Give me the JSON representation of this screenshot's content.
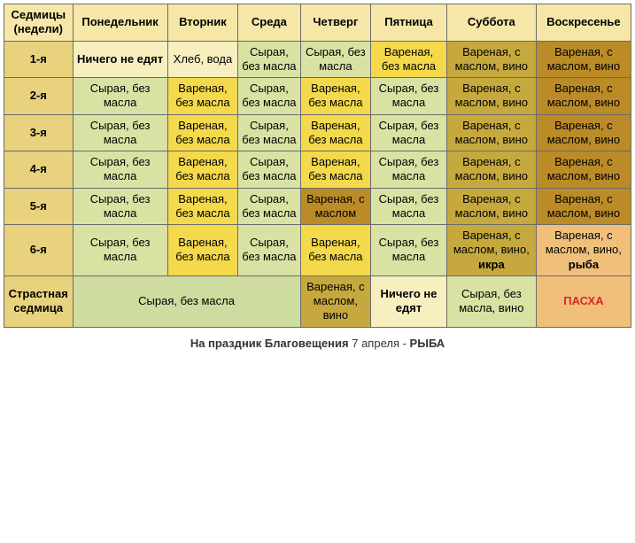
{
  "colors": {
    "header": "#f6e7a8",
    "week_label": "#e8d27e",
    "cream": "#f7efc0",
    "light_green": "#d9e2a3",
    "pale_green": "#cfdca0",
    "yellow": "#f3d94b",
    "olive": "#c6a93e",
    "brown": "#ba8b27",
    "salmon": "#f0c07a",
    "pascha_text": "#d8262c"
  },
  "headers": {
    "week": "Седмицы\n(недели)",
    "mon": "Понедельник",
    "tue": "Вторник",
    "wed": "Среда",
    "thu": "Четверг",
    "fri": "Пятница",
    "sat": "Суббота",
    "sun": "Воскресенье"
  },
  "rows": [
    {
      "label": "1-я",
      "cells": [
        {
          "text": "Ничего не едят",
          "bg": "cream",
          "bold": true
        },
        {
          "text": "Хлеб, вода",
          "bg": "cream"
        },
        {
          "text": "Сырая, без масла",
          "bg": "light_green"
        },
        {
          "text": "Сырая, без масла",
          "bg": "light_green"
        },
        {
          "text": "Вареная, без масла",
          "bg": "yellow"
        },
        {
          "text": "Вареная, с маслом, вино",
          "bg": "olive"
        },
        {
          "text": "Вареная, с маслом, вино",
          "bg": "brown"
        }
      ]
    },
    {
      "label": "2-я",
      "cells": [
        {
          "text": "Сырая, без масла",
          "bg": "light_green"
        },
        {
          "text": "Вареная, без масла",
          "bg": "yellow"
        },
        {
          "text": "Сырая, без масла",
          "bg": "light_green"
        },
        {
          "text": "Вареная, без масла",
          "bg": "yellow"
        },
        {
          "text": "Сырая, без масла",
          "bg": "light_green"
        },
        {
          "text": "Вареная, с маслом, вино",
          "bg": "olive"
        },
        {
          "text": "Вареная, с маслом, вино",
          "bg": "brown"
        }
      ]
    },
    {
      "label": "3-я",
      "cells": [
        {
          "text": "Сырая, без масла",
          "bg": "light_green"
        },
        {
          "text": "Вареная, без масла",
          "bg": "yellow"
        },
        {
          "text": "Сырая, без масла",
          "bg": "light_green"
        },
        {
          "text": "Вареная, без масла",
          "bg": "yellow"
        },
        {
          "text": "Сырая, без масла",
          "bg": "light_green"
        },
        {
          "text": "Вареная, с маслом, вино",
          "bg": "olive"
        },
        {
          "text": "Вареная, с маслом, вино",
          "bg": "brown"
        }
      ]
    },
    {
      "label": "4-я",
      "cells": [
        {
          "text": "Сырая, без масла",
          "bg": "light_green"
        },
        {
          "text": "Вареная, без масла",
          "bg": "yellow"
        },
        {
          "text": "Сырая, без масла",
          "bg": "light_green"
        },
        {
          "text": "Вареная, без масла",
          "bg": "yellow"
        },
        {
          "text": "Сырая, без масла",
          "bg": "light_green"
        },
        {
          "text": "Вареная, с маслом, вино",
          "bg": "olive"
        },
        {
          "text": "Вареная, с маслом, вино",
          "bg": "brown"
        }
      ]
    },
    {
      "label": "5-я",
      "cells": [
        {
          "text": "Сырая, без масла",
          "bg": "light_green"
        },
        {
          "text": "Вареная, без масла",
          "bg": "yellow"
        },
        {
          "text": "Сырая, без масла",
          "bg": "light_green"
        },
        {
          "text": "Вареная, с маслом",
          "bg": "brown"
        },
        {
          "text": "Сырая, без масла",
          "bg": "light_green"
        },
        {
          "text": "Вареная, с маслом, вино",
          "bg": "olive"
        },
        {
          "text": "Вареная, с маслом, вино",
          "bg": "brown"
        }
      ]
    },
    {
      "label": "6-я",
      "cells": [
        {
          "text": "Сырая, без масла",
          "bg": "light_green"
        },
        {
          "text": "Вареная, без масла",
          "bg": "yellow"
        },
        {
          "text": "Сырая, без масла",
          "bg": "light_green"
        },
        {
          "text": "Вареная, без масла",
          "bg": "yellow"
        },
        {
          "text": "Сырая, без масла",
          "bg": "light_green"
        },
        {
          "text": "Вареная, с маслом, вино, ",
          "bg": "olive",
          "extra_bold": "икра"
        },
        {
          "text": "Вареная, с маслом, вино, ",
          "bg": "salmon",
          "extra_bold": "рыба"
        }
      ]
    }
  ],
  "holy_week": {
    "label": "Страстная седмица",
    "span_cell": {
      "text": "Сырая, без масла",
      "bg": "pale_green",
      "colspan": 3
    },
    "thu": {
      "text": "Вареная, с маслом, вино",
      "bg": "olive"
    },
    "fri": {
      "text": "Ничего не едят",
      "bg": "cream",
      "bold": true
    },
    "sat": {
      "text": "Сырая, без масла, вино",
      "bg": "light_green"
    },
    "sun": {
      "text": "ПАСХА",
      "bg": "salmon",
      "bold": true,
      "color": "pascha_text"
    }
  },
  "footnote": {
    "prefix": "На праздник Благовещения",
    "middle": " 7 апреля -  ",
    "fish": "РЫБА"
  }
}
